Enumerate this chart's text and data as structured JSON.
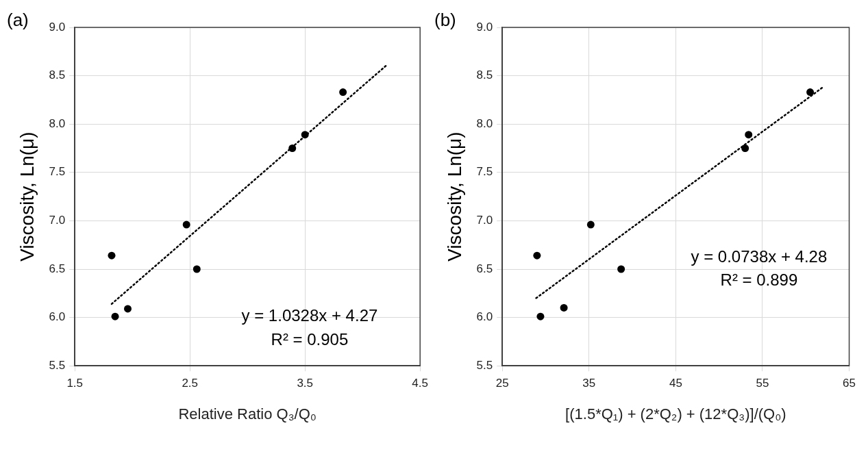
{
  "chart_data": [
    {
      "type": "scatter",
      "title": "(a)",
      "xlabel": "Relative Ratio Q₃/Q₀",
      "ylabel": "Viscosity, Ln(μ)",
      "xlim": [
        1.5,
        4.5
      ],
      "xticks": [
        1.5,
        2.5,
        3.5,
        4.5
      ],
      "ylim": [
        5.5,
        9.0
      ],
      "yticks": [
        {
          "value": 5.5,
          "label": "5.5"
        },
        {
          "value": 6,
          "label": "6.0"
        },
        {
          "value": 6.5,
          "label": "6.5"
        },
        {
          "value": 7,
          "label": "7.0"
        },
        {
          "value": 7.5,
          "label": "7.5"
        },
        {
          "value": 8,
          "label": "8.0"
        },
        {
          "value": 8.5,
          "label": "8.5"
        },
        {
          "value": 9,
          "label": "9.0"
        }
      ],
      "grid": true,
      "legend": false,
      "series": [
        {
          "type": "scatter",
          "color": "#000000",
          "marker": "circle",
          "x": [
            1.82,
            1.85,
            1.96,
            2.47,
            2.56,
            3.39,
            3.5,
            3.83
          ],
          "values": [
            6.64,
            6.01,
            6.09,
            6.96,
            6.5,
            7.75,
            7.89,
            8.33
          ]
        },
        {
          "type": "line",
          "color": "#000000",
          "marker": "none",
          "line_style": "dotted",
          "x": [
            1.82,
            4.21
          ],
          "values": [
            6.14,
            8.61
          ]
        }
      ],
      "annotations": [
        "y = 1.0328x + 4.27",
        "R² = 0.905"
      ]
    },
    {
      "type": "scatter",
      "title": "(b)",
      "xlabel": "[(1.5*Q₁) + (2*Q₂) + (12*Q₃)]/(Q₀)",
      "ylabel": "Viscosity, Ln(μ)",
      "xlim": [
        25,
        65
      ],
      "xticks": [
        25,
        35,
        45,
        55,
        65
      ],
      "ylim": [
        5.5,
        9.0
      ],
      "yticks": [
        {
          "value": 5.5,
          "label": "5.5"
        },
        {
          "value": 6,
          "label": "6.0"
        },
        {
          "value": 6.5,
          "label": "6.5"
        },
        {
          "value": 7,
          "label": "7.0"
        },
        {
          "value": 7.5,
          "label": "7.5"
        },
        {
          "value": 8,
          "label": "8.0"
        },
        {
          "value": 8.5,
          "label": "8.5"
        },
        {
          "value": 9,
          "label": "9.0"
        }
      ],
      "grid": true,
      "legend": false,
      "series": [
        {
          "type": "scatter",
          "color": "#000000",
          "marker": "circle",
          "x": [
            29.0,
            29.4,
            32.1,
            35.2,
            38.7,
            53.0,
            53.4,
            60.5
          ],
          "values": [
            6.64,
            6.01,
            6.1,
            6.96,
            6.5,
            7.75,
            7.89,
            8.33
          ]
        },
        {
          "type": "line",
          "color": "#000000",
          "marker": "none",
          "line_style": "dotted",
          "x": [
            28.9,
            62.1
          ],
          "values": [
            6.2,
            8.39
          ]
        }
      ],
      "annotations": [
        "y = 0.0738x + 4.28",
        "R² = 0.899"
      ]
    }
  ]
}
